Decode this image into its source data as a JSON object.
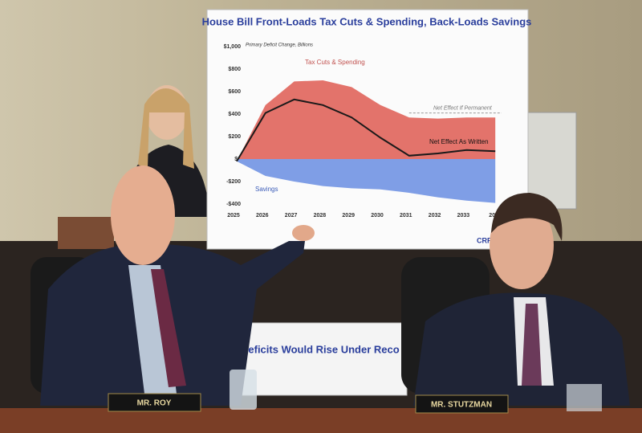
{
  "chart_data": {
    "type": "area",
    "title": "House Bill Front-Loads Tax Cuts & Spending, Back-Loads Savings",
    "subtitle": "Primary Deficit Change, Billions",
    "categories": [
      "2025",
      "2026",
      "2027",
      "2028",
      "2029",
      "2030",
      "2031",
      "2032",
      "2033",
      "20"
    ],
    "series": [
      {
        "name": "Tax Cuts & Spending",
        "color": "#e3736b",
        "values": [
          -20,
          480,
          690,
          700,
          640,
          480,
          370,
          360,
          370,
          370
        ]
      },
      {
        "name": "Savings",
        "color": "#7f9ee6",
        "values": [
          -20,
          -150,
          -200,
          -240,
          -260,
          -270,
          -300,
          -340,
          -370,
          -390
        ]
      },
      {
        "name": "Net Effect As Written",
        "color": "#1a1a1a",
        "values": [
          -20,
          410,
          530,
          480,
          370,
          190,
          30,
          50,
          80,
          70
        ]
      }
    ],
    "reference_line": {
      "label": "Net Effect If Permanent",
      "value": 410
    },
    "ylim": [
      -400,
      1000
    ],
    "yticks": [
      {
        "value": 1000,
        "label": "$1,000"
      },
      {
        "value": 800,
        "label": "$800"
      },
      {
        "value": 600,
        "label": "$600"
      },
      {
        "value": 400,
        "label": "$400"
      },
      {
        "value": 200,
        "label": "$200"
      },
      {
        "value": 0,
        "label": "$0"
      },
      {
        "value": -200,
        "label": "-$200"
      },
      {
        "value": -400,
        "label": "-$400"
      }
    ],
    "logo": "CRFB.ORG"
  },
  "scene": {
    "nameplates": [
      "MR. ROY",
      "MR. STUTZMAN"
    ],
    "lower_poster_title": "Deficits Would Rise Under Reco"
  }
}
